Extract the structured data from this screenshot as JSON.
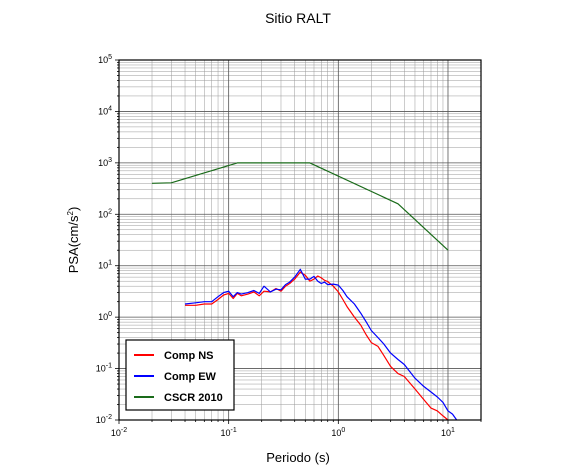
{
  "chart_data": {
    "type": "line",
    "title": "Sitio RALT",
    "xlabel": "Periodo (s)",
    "ylabel_main": "PSA(cm/s",
    "ylabel_sup": "2",
    "ylabel_tail": ")",
    "x_scale": "log",
    "y_scale": "log",
    "xlim": [
      0.01,
      20
    ],
    "ylim": [
      0.01,
      100000
    ],
    "grid": true,
    "legend_position": "bottom-left",
    "x_ticks": [
      {
        "base": "10",
        "exp": "-2",
        "value": 0.01
      },
      {
        "base": "10",
        "exp": "-1",
        "value": 0.1
      },
      {
        "base": "10",
        "exp": "0",
        "value": 1
      },
      {
        "base": "10",
        "exp": "1",
        "value": 10
      }
    ],
    "y_ticks": [
      {
        "base": "10",
        "exp": "-2",
        "value": 0.01
      },
      {
        "base": "10",
        "exp": "-1",
        "value": 0.1
      },
      {
        "base": "10",
        "exp": "0",
        "value": 1
      },
      {
        "base": "10",
        "exp": "1",
        "value": 10
      },
      {
        "base": "10",
        "exp": "2",
        "value": 100
      },
      {
        "base": "10",
        "exp": "3",
        "value": 1000
      },
      {
        "base": "10",
        "exp": "4",
        "value": 10000
      },
      {
        "base": "10",
        "exp": "5",
        "value": 100000
      }
    ],
    "series": [
      {
        "name": "Comp NS",
        "color": "#ff0000",
        "x": [
          0.04,
          0.05,
          0.06,
          0.07,
          0.08,
          0.09,
          0.1,
          0.11,
          0.12,
          0.13,
          0.15,
          0.17,
          0.19,
          0.21,
          0.24,
          0.27,
          0.3,
          0.33,
          0.36,
          0.4,
          0.45,
          0.5,
          0.55,
          0.6,
          0.65,
          0.7,
          0.75,
          0.8,
          0.9,
          1.0,
          1.1,
          1.2,
          1.4,
          1.6,
          1.8,
          2.0,
          2.3,
          2.6,
          3.0,
          3.5,
          4.0,
          5.0,
          6.0,
          7.0,
          8.0,
          9.0,
          10.0
        ],
        "y": [
          1.7,
          1.7,
          1.8,
          1.8,
          2.2,
          2.7,
          2.9,
          2.3,
          2.9,
          2.6,
          2.8,
          3.1,
          2.6,
          3.2,
          3.1,
          3.6,
          3.2,
          4.0,
          4.5,
          5.5,
          7.5,
          6.5,
          5.0,
          5.5,
          6.3,
          5.8,
          5.2,
          4.9,
          4.0,
          3.1,
          2.2,
          1.6,
          1.0,
          0.7,
          0.45,
          0.32,
          0.27,
          0.18,
          0.11,
          0.08,
          0.07,
          0.04,
          0.025,
          0.017,
          0.015,
          0.012,
          0.01
        ]
      },
      {
        "name": "Comp EW",
        "color": "#0000ff",
        "x": [
          0.04,
          0.05,
          0.06,
          0.07,
          0.08,
          0.09,
          0.1,
          0.11,
          0.12,
          0.13,
          0.15,
          0.17,
          0.19,
          0.21,
          0.24,
          0.27,
          0.3,
          0.33,
          0.36,
          0.4,
          0.45,
          0.5,
          0.55,
          0.6,
          0.65,
          0.7,
          0.75,
          0.8,
          0.9,
          1.0,
          1.1,
          1.2,
          1.4,
          1.6,
          1.8,
          2.0,
          2.3,
          2.6,
          3.0,
          3.5,
          4.0,
          5.0,
          6.0,
          7.0,
          8.0,
          9.0,
          10.0,
          11.0,
          12.0
        ],
        "y": [
          1.8,
          1.9,
          2.0,
          2.0,
          2.5,
          3.0,
          3.2,
          2.5,
          3.0,
          2.8,
          3.0,
          3.3,
          2.9,
          4.0,
          3.1,
          3.5,
          3.4,
          4.3,
          4.8,
          6.0,
          8.5,
          5.5,
          5.5,
          6.2,
          5.0,
          4.5,
          4.8,
          4.3,
          4.4,
          4.2,
          3.3,
          2.5,
          1.8,
          1.2,
          0.8,
          0.55,
          0.4,
          0.3,
          0.2,
          0.15,
          0.12,
          0.065,
          0.045,
          0.035,
          0.028,
          0.022,
          0.015,
          0.013,
          0.01
        ]
      },
      {
        "name": "CSCR 2010",
        "color": "#1a6b1a",
        "x": [
          0.02,
          0.03,
          0.12,
          0.55,
          3.5,
          10.0
        ],
        "y": [
          400,
          410,
          1000,
          1000,
          160,
          20
        ]
      }
    ]
  }
}
